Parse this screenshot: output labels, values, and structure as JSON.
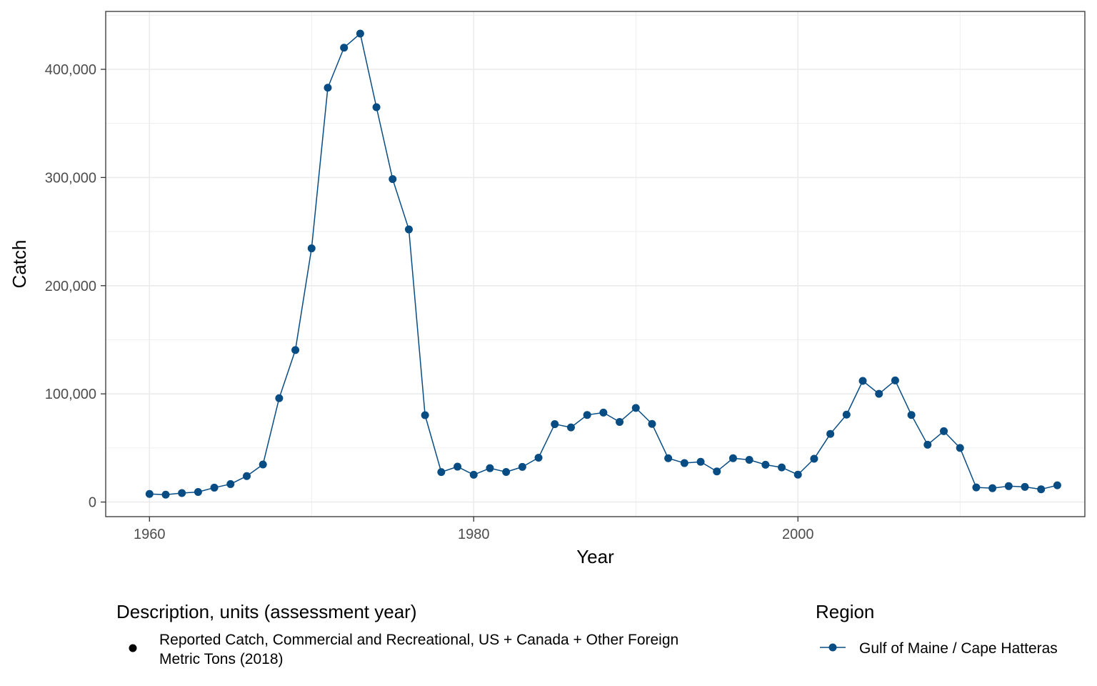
{
  "chart_data": {
    "type": "line",
    "xlabel": "Year",
    "ylabel": "Catch",
    "xlim": [
      1957.3,
      2017.7
    ],
    "ylim": [
      -13500,
      453500
    ],
    "x_ticks": [
      1960,
      1980,
      2000
    ],
    "x_tick_labels": [
      "1960",
      "1980",
      "2000"
    ],
    "y_ticks": [
      0,
      100000,
      200000,
      300000,
      400000
    ],
    "y_tick_labels": [
      "0",
      "100,000",
      "200,000",
      "300,000",
      "400,000"
    ],
    "grid": true,
    "series": [
      {
        "name": "Gulf of Maine / Cape Hatteras",
        "color": "#084c84",
        "x": [
          1960,
          1961,
          1962,
          1963,
          1964,
          1965,
          1966,
          1967,
          1968,
          1969,
          1970,
          1971,
          1972,
          1973,
          1974,
          1975,
          1976,
          1977,
          1978,
          1979,
          1980,
          1981,
          1982,
          1983,
          1984,
          1985,
          1986,
          1987,
          1988,
          1989,
          1990,
          1991,
          1992,
          1993,
          1994,
          1995,
          1996,
          1997,
          1998,
          1999,
          2000,
          2001,
          2002,
          2003,
          2004,
          2005,
          2006,
          2007,
          2008,
          2009,
          2010,
          2011,
          2012,
          2013,
          2014,
          2015,
          2016
        ],
        "y": [
          7500,
          6800,
          8300,
          9300,
          13300,
          16600,
          24000,
          34700,
          96000,
          140500,
          234500,
          383000,
          420000,
          433000,
          365000,
          298500,
          252000,
          80300,
          27700,
          32700,
          25200,
          31300,
          27800,
          32500,
          41000,
          72000,
          69000,
          80500,
          82700,
          74000,
          87000,
          72200,
          40500,
          36000,
          37200,
          28300,
          40500,
          39000,
          34500,
          32000,
          25300,
          40000,
          63000,
          80800,
          112000,
          100000,
          112400,
          80500,
          53000,
          65500,
          50000,
          13500,
          12800,
          14700,
          14000,
          11800,
          15500
        ]
      }
    ],
    "legends": [
      {
        "title": "Description, units (assessment year)",
        "entries": [
          "Reported Catch, Commercial and Recreational, US + Canada + Other Foreign",
          "Metric Tons (2018)"
        ],
        "color": "#000000"
      },
      {
        "title": "Region",
        "entries": [
          "Gulf of Maine / Cape Hatteras"
        ],
        "color": "#084c84"
      }
    ],
    "legend_placement": "bottom"
  }
}
